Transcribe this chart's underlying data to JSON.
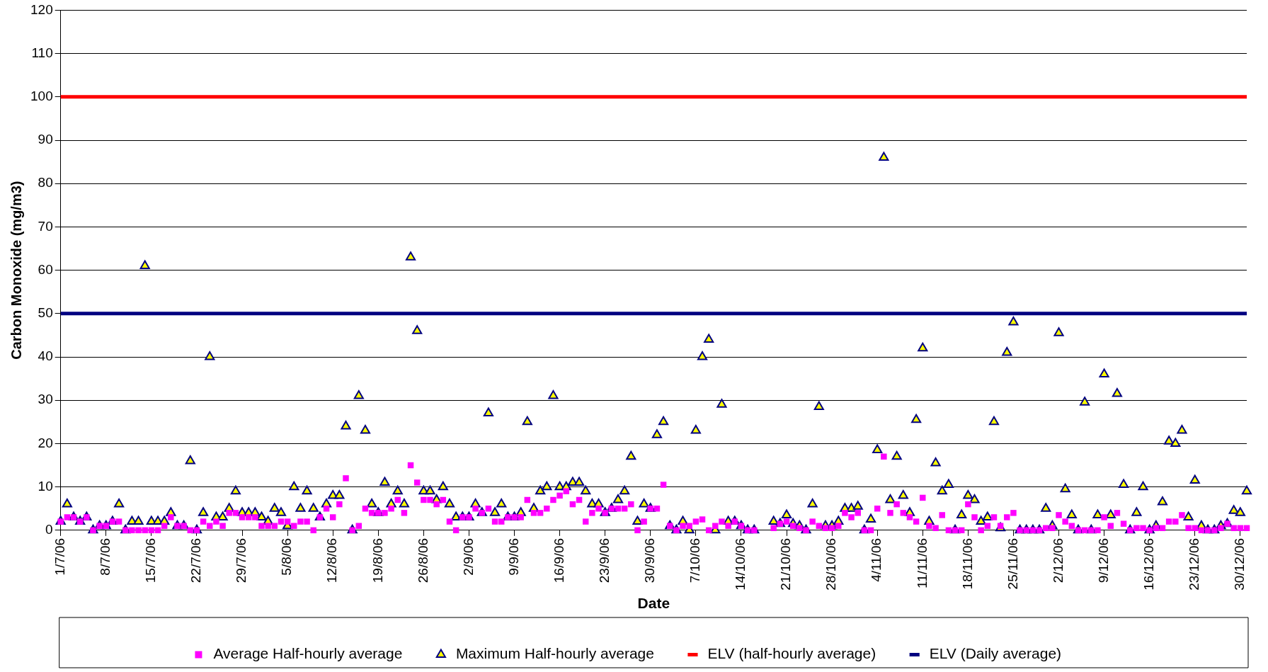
{
  "chart_data": {
    "type": "scatter",
    "xlabel": "Date",
    "ylabel": "Carbon Monoxide (mg/m3)",
    "x": [
      "--07-01",
      "--07-02",
      "--07-03",
      "--07-04",
      "--07-05",
      "--07-06",
      "--07-07",
      "--07-08",
      "--07-09",
      "--07-10",
      "--07-11",
      "--07-12",
      "--07-13",
      "--07-14",
      "--07-15",
      "--07-16",
      "--07-17",
      "--07-18",
      "--07-19",
      "--07-20",
      "--07-21",
      "--07-22",
      "--07-23",
      "--07-24",
      "--07-25",
      "--07-26",
      "--07-27",
      "--07-28",
      "--07-29",
      "--07-30",
      "--07-31",
      "--08-01",
      "--08-02",
      "--08-03",
      "--08-04",
      "--08-05",
      "--08-06",
      "--08-07",
      "--08-08",
      "--08-09",
      "--08-10",
      "--08-11",
      "--08-12",
      "--08-13",
      "--08-14",
      "--08-15",
      "--08-16",
      "--08-17",
      "--08-18",
      "--08-19",
      "--08-20",
      "--08-21",
      "--08-22",
      "--08-23",
      "--08-24",
      "--08-25",
      "--08-26",
      "--08-27",
      "--08-28",
      "--08-29",
      "--08-30",
      "--08-31",
      "--09-01",
      "--09-02",
      "--09-03",
      "--09-04",
      "--09-05",
      "--09-06",
      "--09-07",
      "--09-08",
      "--09-09",
      "--09-10",
      "--09-11",
      "--09-12",
      "--09-13",
      "--09-14",
      "--09-15",
      "--09-16",
      "--09-17",
      "--09-18",
      "--09-19",
      "--09-20",
      "--09-21",
      "--09-22",
      "--09-23",
      "--09-24",
      "--09-25",
      "--09-26",
      "--09-27",
      "--09-28",
      "--09-29",
      "--09-30",
      "--10-01",
      "--10-02",
      "--10-03",
      "--10-04",
      "--10-05",
      "--10-06",
      "--10-07",
      "--10-08",
      "--10-09",
      "--10-10",
      "--10-11",
      "--10-12",
      "--10-13",
      "--10-14",
      "--10-15",
      "--10-16",
      "--10-19",
      "--10-20",
      "--10-21",
      "--10-22",
      "--10-23",
      "--10-24",
      "--10-25",
      "--10-26",
      "--10-27",
      "--10-28",
      "--10-29",
      "--10-30",
      "--10-31",
      "--11-01",
      "--11-02",
      "--11-03",
      "--11-04",
      "--11-05",
      "--11-06",
      "--11-07",
      "--11-08",
      "--11-09",
      "--11-10",
      "--11-11",
      "--11-12",
      "--11-13",
      "--11-14",
      "--11-15",
      "--11-16",
      "--11-17",
      "--11-18",
      "--11-19",
      "--11-20",
      "--11-21",
      "--11-22",
      "--11-23",
      "--11-24",
      "--11-25",
      "--11-26",
      "--11-27",
      "--11-28",
      "--11-29",
      "--11-30",
      "--12-01",
      "--12-02",
      "--12-03",
      "--12-04",
      "--12-05",
      "--12-06",
      "--12-07",
      "--12-08",
      "--12-09",
      "--12-10",
      "--12-11",
      "--12-12",
      "--12-13",
      "--12-14",
      "--12-15",
      "--12-16",
      "--12-17",
      "--12-18",
      "--12-19",
      "--12-20",
      "--12-21",
      "--12-22",
      "--12-23",
      "--12-24",
      "--12-25",
      "--12-26",
      "--12-27",
      "--12-28",
      "--12-29",
      "--12-30",
      "--12-31"
    ],
    "series": [
      {
        "name": "Average Half-hourly average",
        "color": "#ff00ff",
        "marker": "square",
        "values": [
          2,
          3,
          3,
          2,
          3,
          0,
          1,
          1,
          2,
          2,
          0,
          0,
          0,
          0,
          0,
          0,
          1,
          3,
          1,
          1,
          0,
          0,
          2,
          1,
          2,
          1,
          4,
          4,
          3,
          3,
          3,
          1,
          1,
          1,
          2,
          2,
          1,
          2,
          2,
          0,
          3,
          5,
          3,
          6,
          12,
          0,
          1,
          5,
          4,
          4,
          4,
          5,
          7,
          4,
          15,
          11,
          7,
          7,
          6,
          7,
          2,
          0,
          3,
          3,
          5,
          4,
          5,
          2,
          2,
          3,
          3,
          3,
          7,
          4,
          4,
          5,
          7,
          8,
          9,
          6,
          7,
          2,
          4,
          5,
          4,
          5,
          5,
          5,
          6,
          0,
          2,
          5,
          5,
          10.5,
          1,
          0,
          1,
          1,
          2,
          2.5,
          0,
          1,
          2,
          1,
          2,
          1,
          0,
          0,
          0.5,
          1.5,
          2,
          1,
          0.5,
          0,
          2,
          1,
          0.5,
          0.5,
          1,
          4,
          3,
          4,
          0,
          0,
          5,
          17,
          4,
          6,
          4,
          3,
          2,
          7.5,
          1,
          0.5,
          3.5,
          0,
          0,
          0,
          6,
          3,
          0,
          1,
          3,
          1,
          3,
          4,
          0,
          0,
          0,
          0,
          0.5,
          0.5,
          3.5,
          2,
          1,
          0,
          0,
          0,
          0,
          3,
          1,
          4,
          1.5,
          0,
          0.5,
          0.5,
          0,
          0.5,
          0.5,
          2,
          2,
          3.5,
          0.5,
          0.5,
          0,
          0,
          0,
          0.5,
          1.5,
          0.5,
          0.5,
          0.5
        ]
      },
      {
        "name": "Maximum Half-hourly average",
        "color": "#ffff00",
        "marker": "triangle",
        "values": [
          2,
          6,
          3,
          2,
          3,
          0,
          1,
          1,
          2,
          6,
          0,
          2,
          2,
          61,
          2,
          2,
          2,
          4,
          1,
          1,
          16,
          0,
          4,
          40,
          3,
          3,
          5,
          9,
          4,
          4,
          4,
          3,
          2,
          5,
          4,
          1,
          10,
          5,
          9,
          5,
          3,
          6,
          8,
          8,
          24,
          0,
          31,
          23,
          6,
          4,
          11,
          6,
          9,
          6,
          63,
          46,
          9,
          9,
          7,
          10,
          6,
          3,
          3,
          3,
          6,
          4,
          27,
          4,
          6,
          3,
          3,
          4,
          25,
          5,
          9,
          10,
          31,
          10,
          10,
          11,
          11,
          9,
          6,
          6,
          4,
          5,
          7,
          9,
          17,
          2,
          6,
          5,
          22,
          25,
          1,
          0,
          2,
          0,
          23,
          40,
          44,
          0,
          29,
          2,
          2,
          1,
          0,
          0,
          2,
          1.5,
          3.5,
          1.5,
          1,
          0,
          6,
          28.5,
          1,
          1,
          2,
          5,
          5,
          5.5,
          0,
          2.5,
          18.5,
          86,
          7,
          17,
          8,
          4,
          25.5,
          42,
          2,
          15.5,
          9,
          10.5,
          0,
          3.5,
          8,
          7,
          2,
          3,
          25,
          0.5,
          41,
          48,
          0,
          0,
          0,
          0,
          5,
          1,
          45.5,
          9.5,
          3.5,
          0,
          29.5,
          0,
          3.5,
          36,
          3.5,
          31.5,
          10.5,
          0,
          4,
          10,
          0,
          1,
          6.5,
          20.5,
          20,
          23,
          3,
          11.5,
          1,
          0,
          0,
          1,
          1.5,
          4.5,
          4,
          9
        ]
      }
    ],
    "ref_lines": [
      {
        "axis": "y",
        "value": 100,
        "label": "ELV (half-hourly average)",
        "color": "#ff0000",
        "line_style": "solid"
      },
      {
        "axis": "y",
        "value": 50,
        "label": "ELV (Daily average)",
        "color": "#000080",
        "line_style": "solid"
      }
    ],
    "xlim": [
      "--07-01",
      "--12-31"
    ],
    "xticks": [
      {
        "value": "--07-01",
        "label": "1/7/06"
      },
      {
        "value": "--07-08",
        "label": "8/7/06"
      },
      {
        "value": "--07-15",
        "label": "15/7/06"
      },
      {
        "value": "--07-22",
        "label": "22/7/06"
      },
      {
        "value": "--07-29",
        "label": "29/7/06"
      },
      {
        "value": "--08-05",
        "label": "5/8/06"
      },
      {
        "value": "--08-12",
        "label": "12/8/06"
      },
      {
        "value": "--08-19",
        "label": "19/8/06"
      },
      {
        "value": "--08-26",
        "label": "26/8/06"
      },
      {
        "value": "--09-02",
        "label": "2/9/06"
      },
      {
        "value": "--09-09",
        "label": "9/9/06"
      },
      {
        "value": "--09-16",
        "label": "16/9/06"
      },
      {
        "value": "--09-23",
        "label": "23/9/06"
      },
      {
        "value": "--09-30",
        "label": "30/9/06"
      },
      {
        "value": "--10-07",
        "label": "7/10/06"
      },
      {
        "value": "--10-14",
        "label": "14/10/06"
      },
      {
        "value": "--10-21",
        "label": "21/10/06"
      },
      {
        "value": "--10-28",
        "label": "28/10/06"
      },
      {
        "value": "--11-04",
        "label": "4/11/06"
      },
      {
        "value": "--11-11",
        "label": "11/11/06"
      },
      {
        "value": "--11-18",
        "label": "18/11/06"
      },
      {
        "value": "--11-25",
        "label": "25/11/06"
      },
      {
        "value": "--12-02",
        "label": "2/12/06"
      },
      {
        "value": "--12-09",
        "label": "9/12/06"
      },
      {
        "value": "--12-16",
        "label": "16/12/06"
      },
      {
        "value": "--12-23",
        "label": "23/12/06"
      },
      {
        "value": "--12-30",
        "label": "30/12/06"
      }
    ],
    "ylim": [
      0,
      120
    ],
    "yticks": [
      0,
      10,
      20,
      30,
      40,
      50,
      60,
      70,
      80,
      90,
      100,
      110,
      120
    ],
    "grid": "y",
    "legend": "bottom"
  }
}
